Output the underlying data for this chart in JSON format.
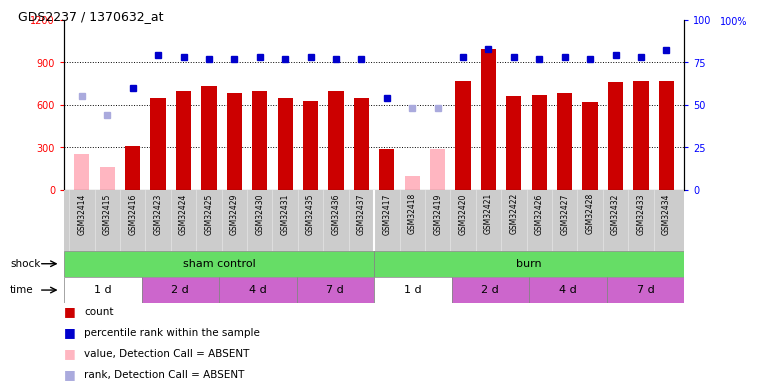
{
  "title": "GDS2237 / 1370632_at",
  "samples": [
    "GSM32414",
    "GSM32415",
    "GSM32416",
    "GSM32423",
    "GSM32424",
    "GSM32425",
    "GSM32429",
    "GSM32430",
    "GSM32431",
    "GSM32435",
    "GSM32436",
    "GSM32437",
    "GSM32417",
    "GSM32418",
    "GSM32419",
    "GSM32420",
    "GSM32421",
    "GSM32422",
    "GSM32426",
    "GSM32427",
    "GSM32428",
    "GSM32432",
    "GSM32433",
    "GSM32434"
  ],
  "count_values": [
    250,
    160,
    310,
    650,
    700,
    730,
    680,
    700,
    650,
    630,
    700,
    650,
    290,
    100,
    290,
    770,
    990,
    660,
    670,
    680,
    620,
    760,
    770,
    770
  ],
  "absent_count": [
    true,
    true,
    false,
    false,
    false,
    false,
    false,
    false,
    false,
    false,
    false,
    false,
    false,
    true,
    true,
    false,
    false,
    false,
    false,
    false,
    false,
    false,
    false,
    false
  ],
  "percentile_right": [
    55,
    44,
    60,
    79,
    78,
    77,
    77,
    78,
    77,
    78,
    77,
    77,
    54,
    48,
    48,
    78,
    83,
    78,
    77,
    78,
    77,
    79,
    78,
    82
  ],
  "absent_percentile": [
    true,
    true,
    false,
    false,
    false,
    false,
    false,
    false,
    false,
    false,
    false,
    false,
    false,
    true,
    true,
    false,
    false,
    false,
    false,
    false,
    false,
    false,
    false,
    false
  ],
  "ylim_left": [
    0,
    1200
  ],
  "ylim_right": [
    0,
    100
  ],
  "yticks_left": [
    0,
    300,
    600,
    900,
    1200
  ],
  "yticks_right": [
    0,
    25,
    50,
    75,
    100
  ],
  "bar_color_normal": "#CC0000",
  "bar_color_absent": "#FFB6C1",
  "dot_color_normal": "#0000CC",
  "dot_color_absent": "#AAAADD",
  "background_color": "#ffffff",
  "shock_green": "#66DD66",
  "time_white": "#ffffff",
  "time_purple": "#CC66CC",
  "xlabel_gray": "#CCCCCC"
}
